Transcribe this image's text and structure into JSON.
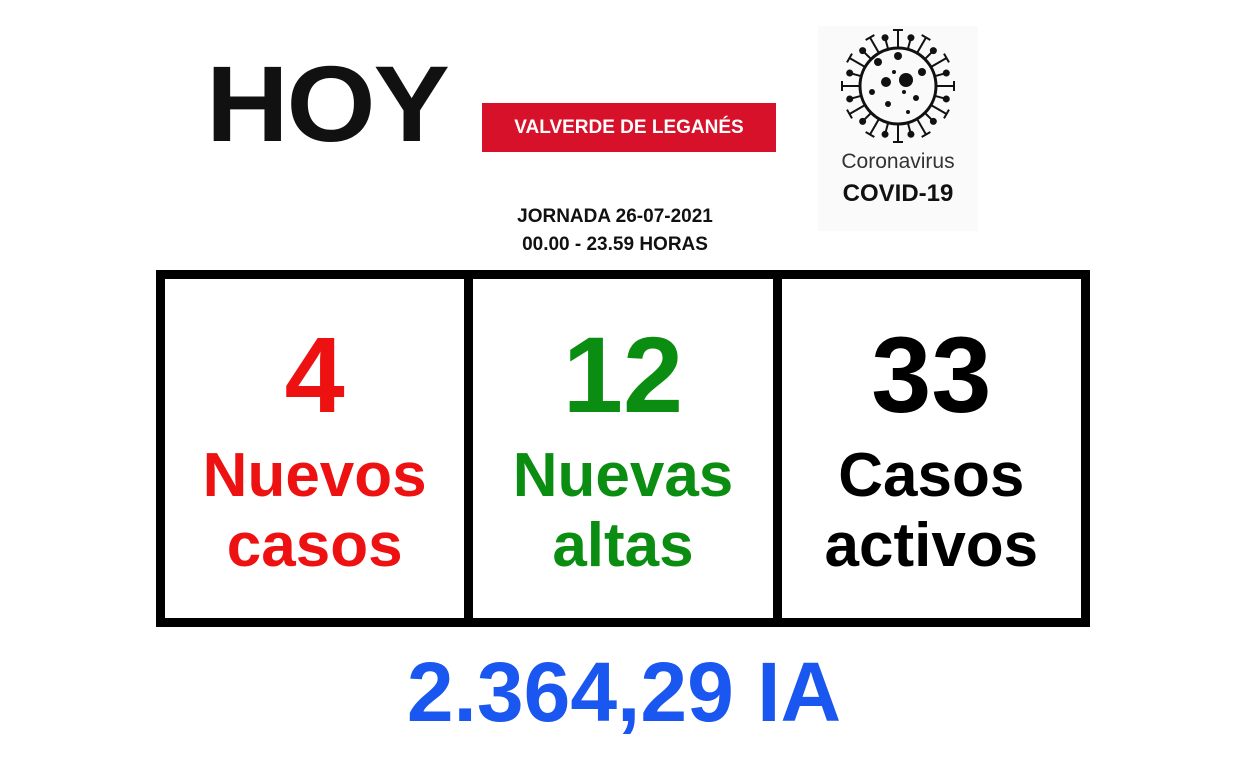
{
  "header": {
    "brand": "HOY",
    "location": "VALVERDE DE LEGANÉS",
    "date_line": "JORNADA 26-07-2021",
    "hours_line": "00.00 - 23.59 HORAS"
  },
  "logo": {
    "icon": "coronavirus-icon",
    "line1": "Coronavirus",
    "line2": "COVID-19"
  },
  "stats": [
    {
      "value": "4",
      "label1": "Nuevos",
      "label2": "casos",
      "color": "#ee1111"
    },
    {
      "value": "12",
      "label1": "Nuevas",
      "label2": "altas",
      "color": "#0b8d12"
    },
    {
      "value": "33",
      "label1": "Casos",
      "label2": "activos",
      "color": "#000000"
    }
  ],
  "incidence": "2.364,29 IA",
  "colors": {
    "banner": "#d8112b",
    "incidence": "#1a56f0"
  }
}
